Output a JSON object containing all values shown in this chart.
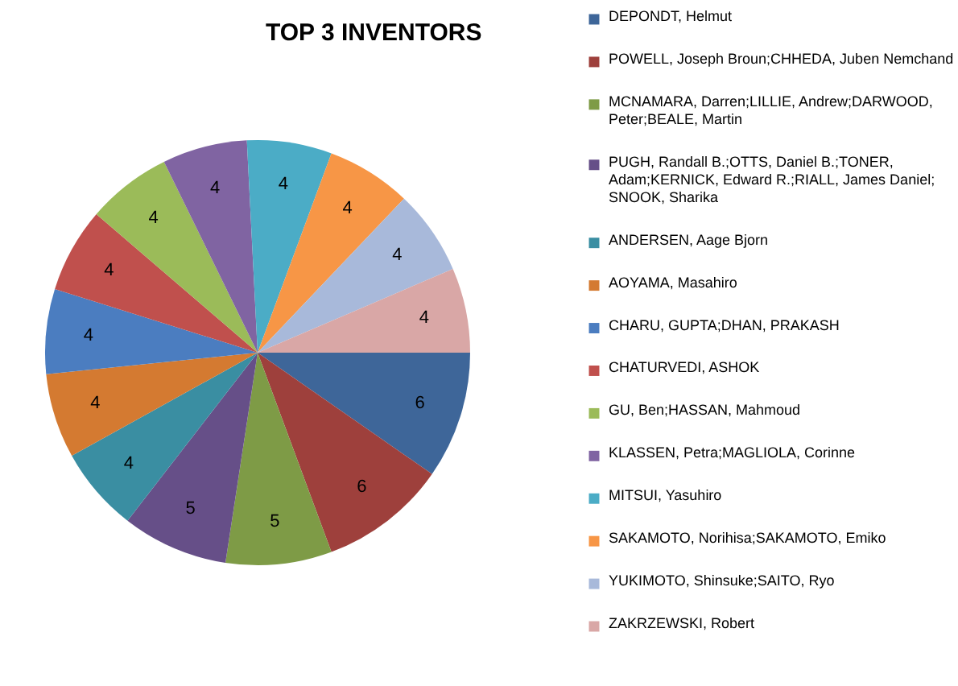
{
  "chart_data": {
    "type": "pie",
    "title": "TOP 3 INVENTORS",
    "categories": [
      "DEPONDT, Helmut",
      "POWELL, Joseph Broun;CHHEDA, Juben Nemchand",
      "MCNAMARA, Darren;LILLIE, Andrew;DARWOOD, Peter;BEALE, Martin",
      "PUGH, Randall B.;OTTS, Daniel B.;TONER, Adam;KERNICK, Edward R.;RIALL, James Daniel;SNOOK, Sharika",
      "ANDERSEN, Aage Bjorn",
      "AOYAMA, Masahiro",
      "CHARU, GUPTA;DHAN, PRAKASH",
      "CHATURVEDI, ASHOK",
      "GU, Ben;HASSAN, Mahmoud",
      "KLASSEN, Petra;MAGLIOLA, Corinne",
      "MITSUI, Yasuhiro",
      "SAKAMOTO, Norihisa;SAKAMOTO, Emiko",
      "YUKIMOTO, Shinsuke;SAITO, Ryo",
      "ZAKRZEWSKI, Robert"
    ],
    "values": [
      6,
      6,
      5,
      5,
      4,
      4,
      4,
      4,
      4,
      4,
      4,
      4,
      4,
      4
    ],
    "colors": [
      "#3e6699",
      "#9e403c",
      "#7e9b46",
      "#664f88",
      "#3a8ea2",
      "#d47a31",
      "#4b7dc0",
      "#c0504d",
      "#9bbb59",
      "#8064a2",
      "#4bacc6",
      "#f79646",
      "#a8b9da",
      "#d9a7a6"
    ],
    "data_labels": true,
    "legend": "right"
  }
}
